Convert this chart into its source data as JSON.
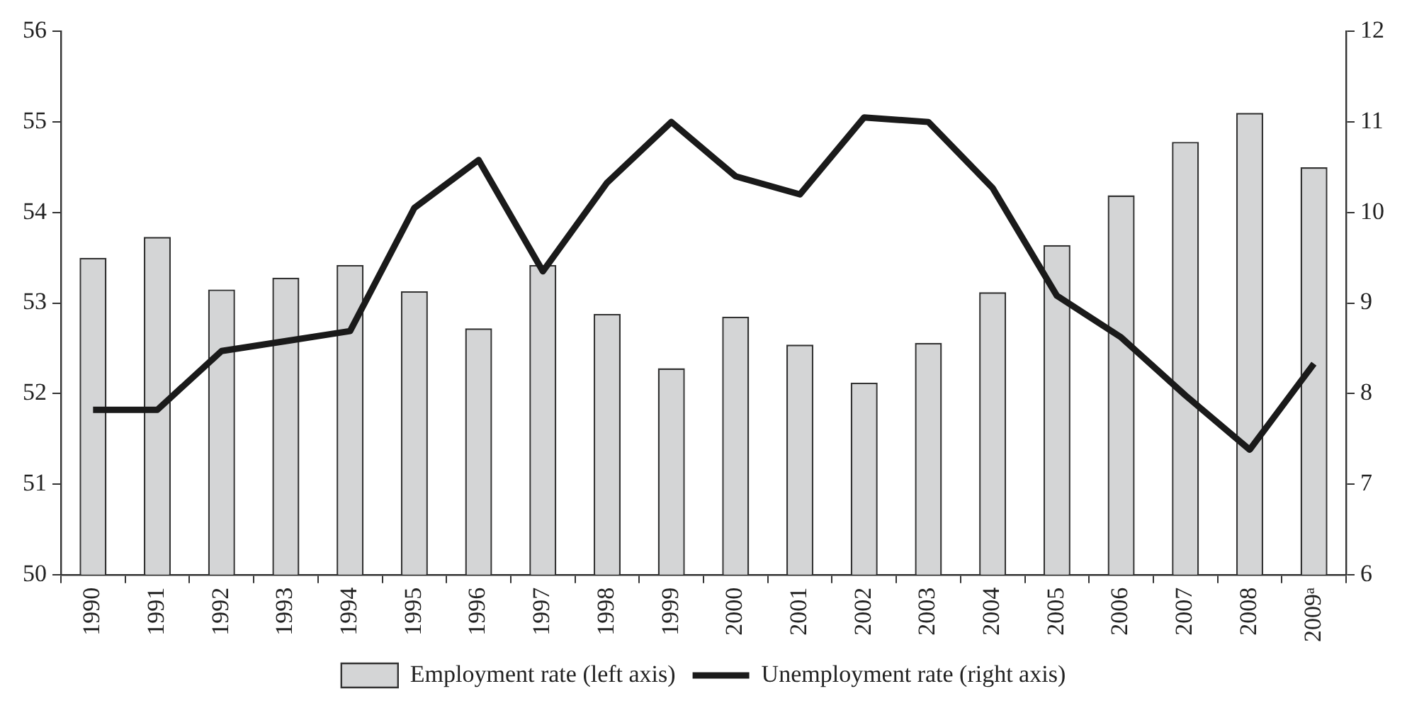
{
  "chart_data": {
    "type": "bar",
    "categories": [
      "1990",
      "1991",
      "1992",
      "1993",
      "1994",
      "1995",
      "1996",
      "1997",
      "1998",
      "1999",
      "2000",
      "2001",
      "2002",
      "2003",
      "2004",
      "2005",
      "2006",
      "2007",
      "2008",
      "2009ᵃ"
    ],
    "series": [
      {
        "name": "Employment rate (left axis)",
        "color": "#d4d5d6",
        "values": [
          53.5,
          53.73,
          53.15,
          53.28,
          53.42,
          53.13,
          52.72,
          53.42,
          52.88,
          52.28,
          52.85,
          52.54,
          52.12,
          52.56,
          53.12,
          53.64,
          54.19,
          54.78,
          55.1,
          54.5
        ]
      },
      {
        "name": "Unemployment rate (right axis)",
        "type": "line",
        "axis": "y2",
        "color": "#1a1a1a",
        "values": [
          7.82,
          7.82,
          8.47,
          8.58,
          8.69,
          10.05,
          10.58,
          9.35,
          10.33,
          11.0,
          10.4,
          10.2,
          11.05,
          11.0,
          10.27,
          9.08,
          8.62,
          7.98,
          7.38,
          8.33
        ]
      }
    ],
    "ylim": [
      50,
      56
    ],
    "yticks": [
      50,
      51,
      52,
      53,
      54,
      55,
      56
    ],
    "y2lim": [
      6,
      12
    ],
    "y2ticks": [
      6,
      7,
      8,
      9,
      10,
      11,
      12
    ],
    "grid": false,
    "legend": "bottom",
    "marker": "none",
    "line_style": "solid"
  }
}
